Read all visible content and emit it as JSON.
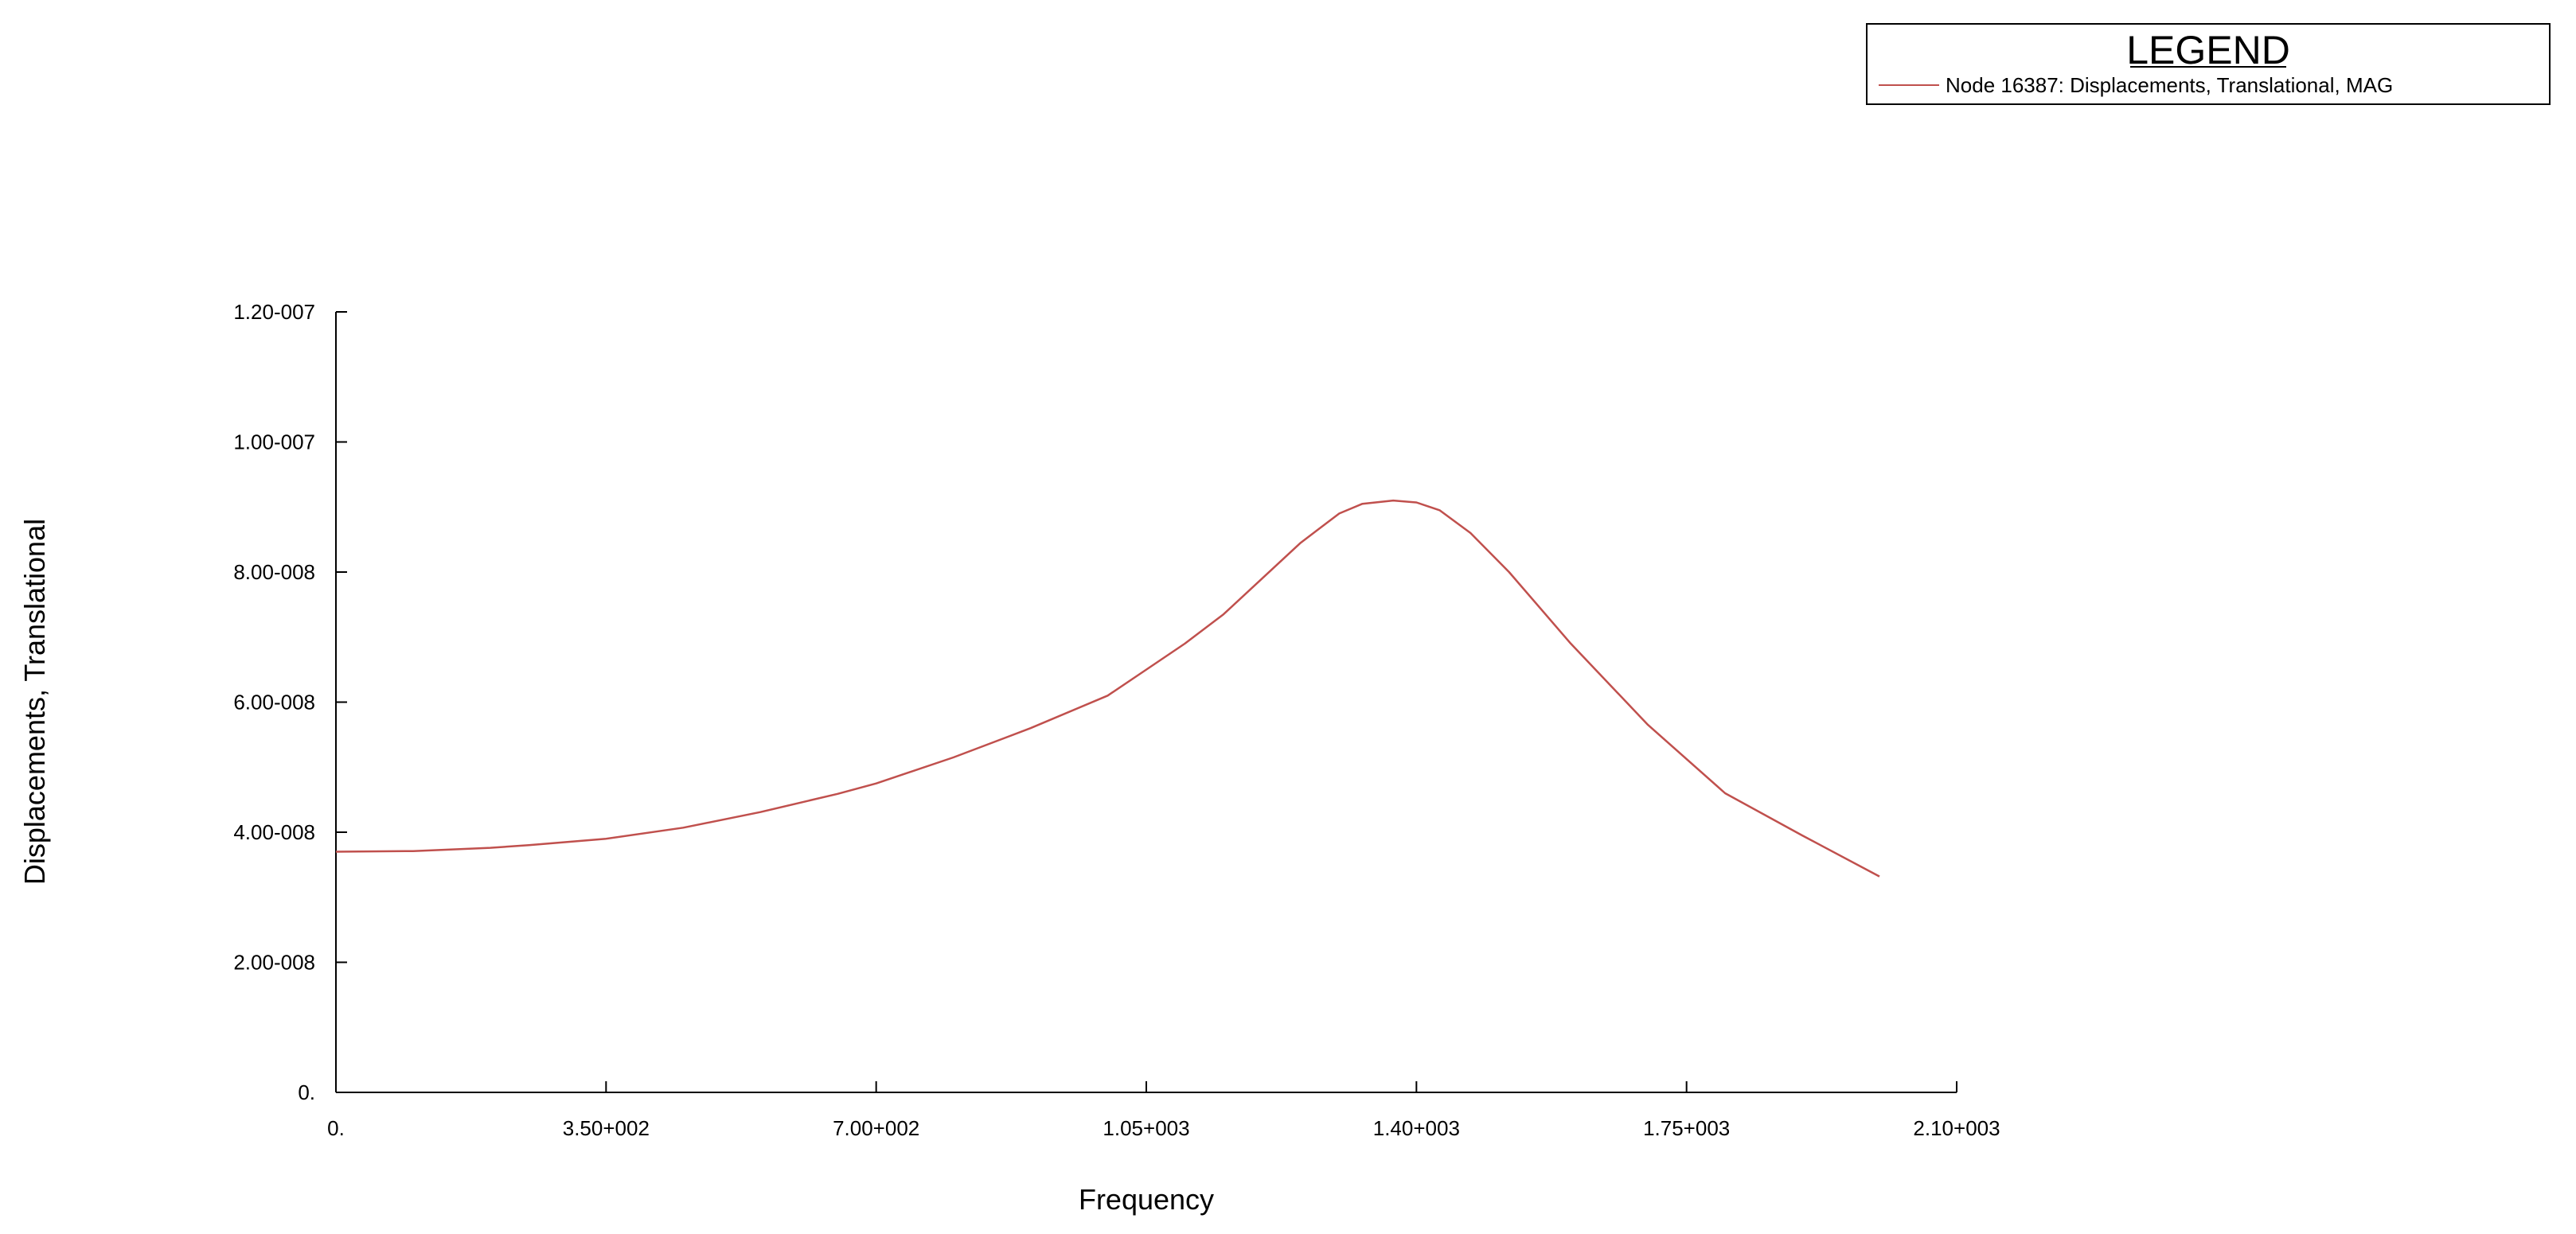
{
  "chart_data": {
    "type": "line",
    "title": "",
    "xlabel": "Frequency",
    "ylabel": "Displacements, Translational",
    "xlim": [
      0,
      2100
    ],
    "ylim": [
      0,
      1.2e-07
    ],
    "grid": false,
    "legend": {
      "title": "LEGEND",
      "placement": "top-right"
    },
    "x_ticks": [
      {
        "value": 0,
        "label": "0."
      },
      {
        "value": 350,
        "label": "3.50+002"
      },
      {
        "value": 700,
        "label": "7.00+002"
      },
      {
        "value": 1050,
        "label": "1.05+003"
      },
      {
        "value": 1400,
        "label": "1.40+003"
      },
      {
        "value": 1750,
        "label": "1.75+003"
      },
      {
        "value": 2100,
        "label": "2.10+003"
      }
    ],
    "y_ticks": [
      {
        "value": 0,
        "label": "0."
      },
      {
        "value": 2e-08,
        "label": "2.00-008"
      },
      {
        "value": 4e-08,
        "label": "4.00-008"
      },
      {
        "value": 6e-08,
        "label": "6.00-008"
      },
      {
        "value": 8e-08,
        "label": "8.00-008"
      },
      {
        "value": 1e-07,
        "label": "1.00-007"
      },
      {
        "value": 1.2e-07,
        "label": "1.20-007"
      }
    ],
    "series": [
      {
        "name": "Node 16387: Displacements, Translational, MAG",
        "color": "#c0504d",
        "x": [
          0,
          100,
          200,
          250,
          350,
          450,
          550,
          650,
          700,
          800,
          900,
          1000,
          1050,
          1100,
          1150,
          1200,
          1250,
          1300,
          1330,
          1370,
          1400,
          1430,
          1470,
          1520,
          1600,
          1700,
          1800,
          1900,
          2000
        ],
        "y": [
          3.7e-08,
          3.71e-08,
          3.76e-08,
          3.8e-08,
          3.9e-08,
          4.07e-08,
          4.31e-08,
          4.59e-08,
          4.75e-08,
          5.15e-08,
          5.6e-08,
          6.1e-08,
          6.5e-08,
          6.9e-08,
          7.35e-08,
          7.9e-08,
          8.45e-08,
          8.9e-08,
          9.05e-08,
          9.1e-08,
          9.07e-08,
          8.95e-08,
          8.6e-08,
          8e-08,
          6.9e-08,
          5.65e-08,
          4.6e-08,
          3.95e-08,
          3.32e-08
        ]
      }
    ]
  }
}
